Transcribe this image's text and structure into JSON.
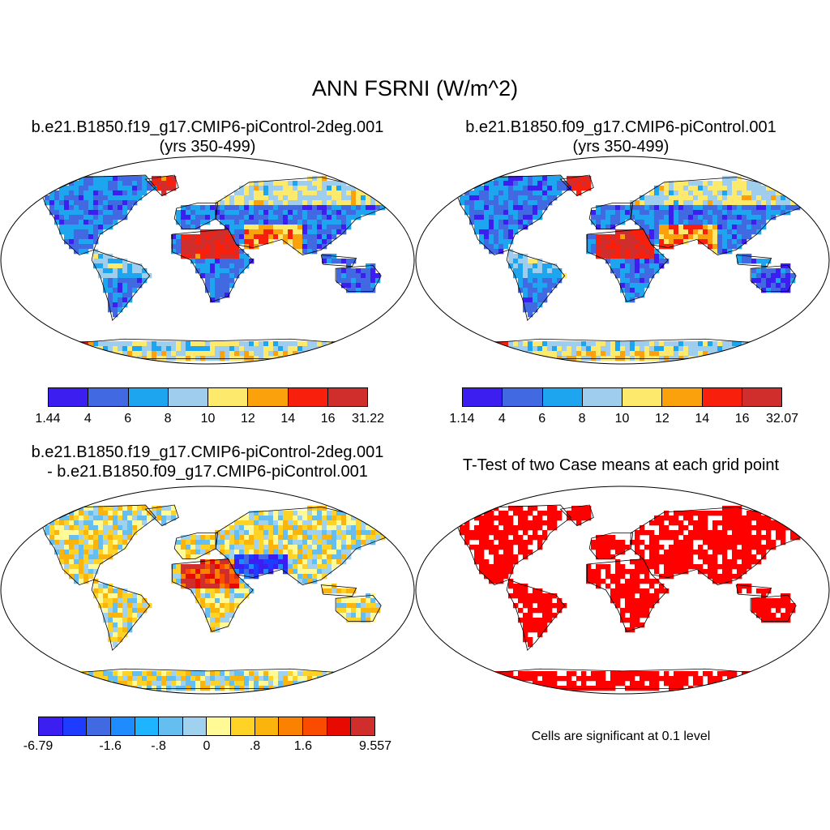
{
  "title": "ANN FSRNI (W/m^2)",
  "panels": [
    {
      "id": "case1",
      "title_line1": "b.e21.B1850.f19_g17.CMIP6-piControl-2deg.001",
      "title_line2": "(yrs 350-499)",
      "colorbar": {
        "colors": [
          "#3c1ef0",
          "#4169e1",
          "#1ea5f0",
          "#9fcdee",
          "#fde96b",
          "#fba10c",
          "#f8200c",
          "#d02d2d"
        ],
        "labels": [
          "1.44",
          "4",
          "6",
          "8",
          "10",
          "12",
          "14",
          "16",
          "31.22"
        ]
      }
    },
    {
      "id": "case2",
      "title_line1": "b.e21.B1850.f09_g17.CMIP6-piControl.001",
      "title_line2": "(yrs 350-499)",
      "colorbar": {
        "colors": [
          "#3c1ef0",
          "#4169e1",
          "#1ea5f0",
          "#9fcdee",
          "#fde96b",
          "#fba10c",
          "#f8200c",
          "#d02d2d"
        ],
        "labels": [
          "1.14",
          "4",
          "6",
          "8",
          "10",
          "12",
          "14",
          "16",
          "32.07"
        ]
      }
    },
    {
      "id": "diff",
      "title_line1": "b.e21.B1850.f19_g17.CMIP6-piControl-2deg.001",
      "title_line2": "- b.e21.B1850.f09_g17.CMIP6-piControl.001",
      "colorbar": {
        "colors": [
          "#3c1ef0",
          "#1e3cff",
          "#4169e1",
          "#1e8cff",
          "#1eb4ff",
          "#64bef0",
          "#a0d2f0",
          "#fffa96",
          "#ffd226",
          "#fbb40c",
          "#fb8200",
          "#fb4b00",
          "#e60a00",
          "#d02d2d"
        ],
        "labels": [
          "-6.79",
          "-1.6",
          "-.8",
          "0",
          ".8",
          "1.6",
          "9.557"
        ]
      },
      "note": ""
    },
    {
      "id": "ttest",
      "title_line1": "T-Test of two Case means at each grid point",
      "title_line2": "",
      "note": "Cells are significant at 0.1 level",
      "fill": "#ff0000"
    }
  ]
}
